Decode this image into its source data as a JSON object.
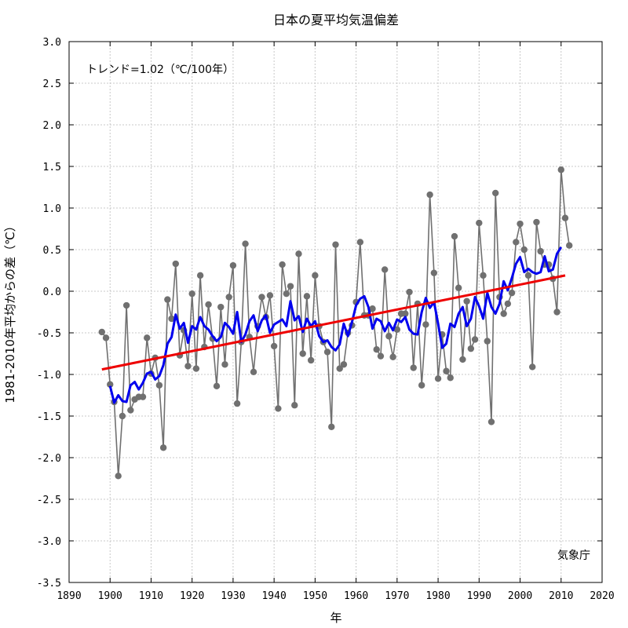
{
  "chart_data": {
    "type": "line",
    "title": "日本の夏平均気温偏差",
    "xlabel": "年",
    "ylabel": "1981-2010年平均からの差（℃）",
    "annotation_trend": "トレンド=1.02（℃/100年）",
    "annotation_source": "気象庁",
    "xlim": [
      1890,
      2020
    ],
    "ylim": [
      -3.5,
      3.0
    ],
    "x_ticks": [
      "1890",
      "1900",
      "1910",
      "1920",
      "1930",
      "1940",
      "1950",
      "1960",
      "1970",
      "1980",
      "1990",
      "2000",
      "2010",
      "2020"
    ],
    "y_ticks": [
      "3.0",
      "2.5",
      "2.0",
      "1.5",
      "1.0",
      "0.5",
      "0.0",
      "-0.5",
      "-1.0",
      "-1.5",
      "-2.0",
      "-2.5",
      "-3.0",
      "-3.5"
    ],
    "grid": true,
    "series": [
      {
        "type": "line-markers",
        "color": "#707070",
        "x": [
          1898,
          1899,
          1900,
          1901,
          1902,
          1903,
          1904,
          1905,
          1906,
          1907,
          1908,
          1909,
          1910,
          1911,
          1912,
          1913,
          1914,
          1915,
          1916,
          1917,
          1918,
          1919,
          1920,
          1921,
          1922,
          1923,
          1924,
          1925,
          1926,
          1927,
          1928,
          1929,
          1930,
          1931,
          1932,
          1933,
          1934,
          1935,
          1936,
          1937,
          1938,
          1939,
          1940,
          1941,
          1942,
          1943,
          1944,
          1945,
          1946,
          1947,
          1948,
          1949,
          1950,
          1951,
          1952,
          1953,
          1954,
          1955,
          1956,
          1957,
          1958,
          1959,
          1960,
          1961,
          1962,
          1963,
          1964,
          1965,
          1966,
          1967,
          1968,
          1969,
          1970,
          1971,
          1972,
          1973,
          1974,
          1975,
          1976,
          1977,
          1978,
          1979,
          1980,
          1981,
          1982,
          1983,
          1984,
          1985,
          1986,
          1987,
          1988,
          1989,
          1990,
          1991,
          1992,
          1993,
          1994,
          1995,
          1996,
          1997,
          1998,
          1999,
          2000,
          2001,
          2002,
          2003,
          2004,
          2005,
          2006,
          2007,
          2008,
          2009,
          2010,
          2011,
          2012
        ],
        "y": [
          -0.49,
          -0.56,
          -1.12,
          -1.33,
          -2.22,
          -1.5,
          -0.17,
          -1.43,
          -1.3,
          -1.27,
          -1.27,
          -0.56,
          -0.99,
          -0.8,
          -1.13,
          -1.88,
          -0.1,
          -0.33,
          0.33,
          -0.77,
          -0.47,
          -0.9,
          -0.03,
          -0.93,
          0.19,
          -0.67,
          -0.16,
          -0.57,
          -1.14,
          -0.19,
          -0.88,
          -0.07,
          0.31,
          -1.35,
          -0.61,
          0.57,
          -0.55,
          -0.97,
          -0.42,
          -0.07,
          -0.31,
          -0.05,
          -0.66,
          -1.41,
          0.32,
          -0.03,
          0.06,
          -1.37,
          0.45,
          -0.75,
          -0.06,
          -0.83,
          0.19,
          -0.42,
          -0.61,
          -0.73,
          -1.63,
          0.56,
          -0.93,
          -0.88,
          -0.5,
          -0.41,
          -0.13,
          0.59,
          -0.29,
          -0.29,
          -0.21,
          -0.7,
          -0.78,
          0.26,
          -0.54,
          -0.79,
          -0.46,
          -0.27,
          -0.27,
          -0.01,
          -0.92,
          -0.15,
          -1.13,
          -0.4,
          1.16,
          0.22,
          -1.05,
          -0.52,
          -0.96,
          -1.04,
          0.66,
          0.04,
          -0.82,
          -0.12,
          -0.69,
          -0.58,
          0.82,
          0.19,
          -0.6,
          -1.57,
          1.18,
          -0.07,
          -0.27,
          -0.15,
          -0.02,
          0.59,
          0.81,
          0.5,
          0.19,
          -0.91,
          0.83,
          0.48,
          0.32,
          0.32,
          0.15,
          -0.25,
          1.46,
          0.88,
          0.55
        ]
      },
      {
        "type": "line",
        "color": "#0000ee",
        "x": [
          1900,
          1901,
          1902,
          1903,
          1904,
          1905,
          1906,
          1907,
          1908,
          1909,
          1910,
          1911,
          1912,
          1913,
          1914,
          1915,
          1916,
          1917,
          1918,
          1919,
          1920,
          1921,
          1922,
          1923,
          1924,
          1925,
          1926,
          1927,
          1928,
          1929,
          1930,
          1931,
          1932,
          1933,
          1934,
          1935,
          1936,
          1937,
          1938,
          1939,
          1940,
          1941,
          1942,
          1943,
          1944,
          1945,
          1946,
          1947,
          1948,
          1949,
          1950,
          1951,
          1952,
          1953,
          1954,
          1955,
          1956,
          1957,
          1958,
          1959,
          1960,
          1961,
          1962,
          1963,
          1964,
          1965,
          1966,
          1967,
          1968,
          1969,
          1970,
          1971,
          1972,
          1973,
          1974,
          1975,
          1976,
          1977,
          1978,
          1979,
          1980,
          1981,
          1982,
          1983,
          1984,
          1985,
          1986,
          1987,
          1988,
          1989,
          1990,
          1991,
          1992,
          1993,
          1994,
          1995,
          1996,
          1997,
          1998,
          1999,
          2000,
          2001,
          2002,
          2003,
          2004,
          2005,
          2006,
          2007,
          2008,
          2009,
          2010
        ],
        "y": [
          -1.14,
          -1.34,
          -1.25,
          -1.32,
          -1.33,
          -1.13,
          -1.09,
          -1.18,
          -1.1,
          -0.99,
          -0.97,
          -1.06,
          -1.02,
          -0.89,
          -0.63,
          -0.55,
          -0.28,
          -0.45,
          -0.38,
          -0.62,
          -0.42,
          -0.46,
          -0.31,
          -0.42,
          -0.46,
          -0.54,
          -0.6,
          -0.55,
          -0.38,
          -0.43,
          -0.51,
          -0.25,
          -0.61,
          -0.52,
          -0.36,
          -0.29,
          -0.48,
          -0.35,
          -0.29,
          -0.5,
          -0.4,
          -0.37,
          -0.34,
          -0.42,
          -0.12,
          -0.35,
          -0.3,
          -0.49,
          -0.33,
          -0.42,
          -0.36,
          -0.54,
          -0.61,
          -0.59,
          -0.67,
          -0.71,
          -0.64,
          -0.39,
          -0.54,
          -0.37,
          -0.17,
          -0.09,
          -0.06,
          -0.19,
          -0.45,
          -0.33,
          -0.36,
          -0.48,
          -0.38,
          -0.47,
          -0.34,
          -0.37,
          -0.31,
          -0.46,
          -0.51,
          -0.52,
          -0.25,
          -0.08,
          -0.2,
          -0.13,
          -0.39,
          -0.68,
          -0.63,
          -0.39,
          -0.43,
          -0.27,
          -0.19,
          -0.42,
          -0.33,
          -0.07,
          -0.18,
          -0.33,
          -0.02,
          -0.19,
          -0.27,
          -0.15,
          0.12,
          0.01,
          0.16,
          0.33,
          0.41,
          0.23,
          0.27,
          0.23,
          0.21,
          0.23,
          0.42,
          0.24,
          0.26,
          0.45,
          0.53
        ]
      },
      {
        "type": "trend",
        "color": "#ee0000",
        "x": [
          1898,
          2011
        ],
        "y": [
          -0.94,
          0.19
        ]
      }
    ]
  }
}
